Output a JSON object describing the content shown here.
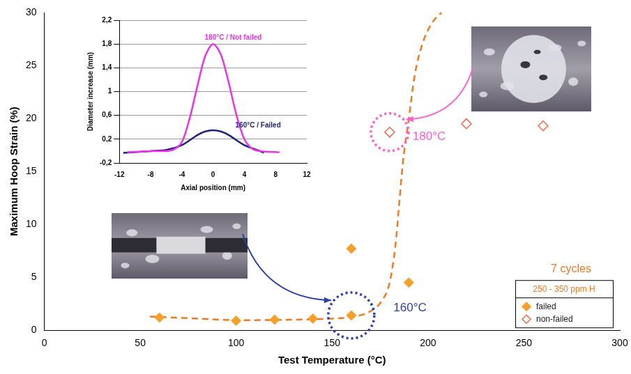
{
  "chart_data": [
    {
      "type": "scatter",
      "x_label": "Test Temperature (°C)",
      "y_label": "Maximum Hoop Strain (%)",
      "xlim": [
        0,
        300
      ],
      "xticks": [
        0,
        50,
        100,
        150,
        200,
        250,
        300
      ],
      "ylim": [
        0,
        30
      ],
      "yticks": [
        0,
        5,
        10,
        15,
        20,
        25,
        30
      ],
      "grid": false,
      "legend": "bottom right",
      "legend_title": "7 cycles",
      "legend_subtitle": "250 - 350 ppm H",
      "series": [
        {
          "name": "failed",
          "color": "#f5a02c",
          "marker": "diamond",
          "x": [
            60,
            100,
            120,
            140,
            160,
            160,
            190
          ],
          "values": [
            1.2,
            0.9,
            1.0,
            1.1,
            1.4,
            7.7,
            4.5
          ]
        },
        {
          "name": "non-failed",
          "color": "#f06a4a",
          "marker": "open diamond",
          "x": [
            180,
            220,
            260
          ],
          "values": [
            18.7,
            19.5,
            19.3
          ]
        },
        {
          "type": "line",
          "line_style": "dashed",
          "color": "#f07a24",
          "x": [
            55,
            80,
            100,
            130,
            150,
            162,
            170,
            176,
            180,
            183,
            185,
            187,
            190,
            193,
            197,
            202,
            207
          ],
          "values": [
            1.3,
            1.1,
            0.95,
            1.0,
            1.1,
            1.3,
            1.8,
            2.8,
            4.5,
            8,
            12,
            16,
            20,
            24,
            27,
            29,
            30
          ]
        }
      ],
      "annotations": [
        {
          "text": "180°C",
          "x": 192,
          "y": 18.3,
          "circle": [
            180,
            18.7
          ],
          "color": "#ff5fcf"
        },
        {
          "text": "160°C",
          "x": 182,
          "y": 2.1,
          "circle": [
            160,
            1.4
          ],
          "color": "#2a3fa8"
        }
      ]
    },
    {
      "type": "line",
      "x_label": "Axial position (mm)",
      "y_label": "Diameter increase (mm)",
      "xlim": [
        -12,
        12
      ],
      "xticks": [
        -12,
        -8,
        -4,
        0,
        4,
        8,
        12
      ],
      "ylim": [
        -0.2,
        2.2
      ],
      "yticks": [
        {
          "value": -0.2,
          "label": "-0,2"
        },
        {
          "value": 0.2,
          "label": "0,2"
        },
        {
          "value": 0.6,
          "label": "0,6"
        },
        1,
        {
          "value": 1.4,
          "label": "1,4"
        },
        {
          "value": 1.8,
          "label": "1,8"
        },
        {
          "value": 2.2,
          "label": "2,2"
        }
      ],
      "grid": "y",
      "series": [
        {
          "name": "180°C / Not failed",
          "color": "#f032e6",
          "x": [
            -11,
            -8,
            -6,
            -5,
            -4,
            -3,
            -2,
            -1,
            0,
            1,
            2,
            3,
            4,
            5,
            6,
            8.5
          ],
          "values": [
            -0.02,
            0,
            0,
            0.03,
            0.15,
            0.55,
            1.1,
            1.6,
            1.8,
            1.62,
            1.15,
            0.6,
            0.2,
            0.04,
            0,
            -0.02
          ]
        },
        {
          "name": "160°C / Failed",
          "color": "#1c2480",
          "x": [
            -11.5,
            -8,
            -6,
            -4,
            -2,
            -1,
            0,
            1,
            2,
            4,
            6,
            6.5
          ],
          "values": [
            -0.03,
            0,
            0.02,
            0.1,
            0.27,
            0.33,
            0.35,
            0.33,
            0.27,
            0.1,
            0,
            -0.03
          ]
        }
      ]
    }
  ]
}
